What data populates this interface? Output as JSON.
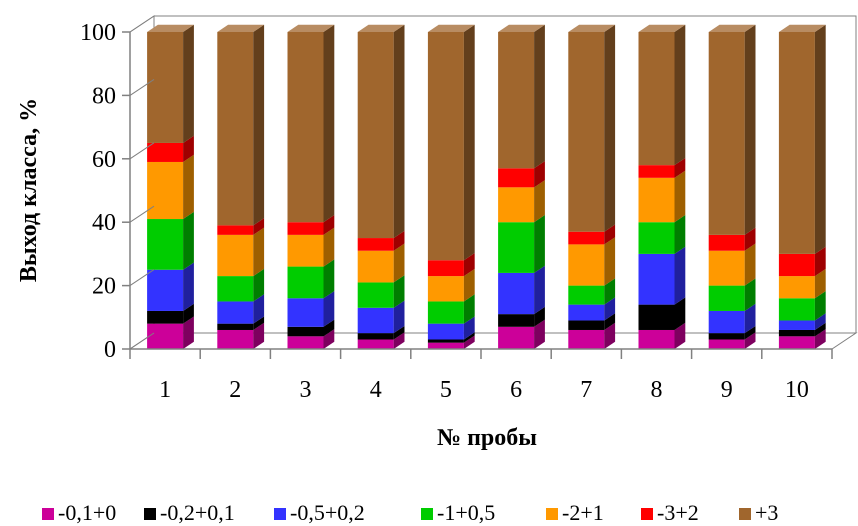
{
  "chart_data": {
    "type": "bar",
    "stacked": true,
    "three_d": true,
    "xlabel": "№ пробы",
    "ylabel": "Выход класса, %",
    "categories": [
      "1",
      "2",
      "3",
      "4",
      "5",
      "6",
      "7",
      "8",
      "9",
      "10"
    ],
    "ylim": [
      0,
      100
    ],
    "yticks": [
      0,
      20,
      40,
      60,
      80,
      100
    ],
    "grid": false,
    "legend_position": "bottom",
    "series": [
      {
        "name": "-0,1+0",
        "color": "#CC0099",
        "values": [
          8,
          6,
          4,
          3,
          2,
          7,
          6,
          6,
          3,
          4
        ]
      },
      {
        "name": "-0,2+0,1",
        "color": "#000000",
        "values": [
          4,
          2,
          3,
          2,
          1,
          4,
          3,
          8,
          2,
          2
        ]
      },
      {
        "name": "-0,5+0,2",
        "color": "#3333FF",
        "values": [
          13,
          7,
          9,
          8,
          5,
          13,
          5,
          16,
          7,
          3
        ]
      },
      {
        "name": "-1+0,5",
        "color": "#00CC00",
        "values": [
          16,
          8,
          10,
          8,
          7,
          16,
          6,
          10,
          8,
          7
        ]
      },
      {
        "name": "-2+1",
        "color": "#FF9900",
        "values": [
          18,
          13,
          10,
          10,
          8,
          11,
          13,
          14,
          11,
          7
        ]
      },
      {
        "name": "-3+2",
        "color": "#FF0000",
        "values": [
          6,
          3,
          4,
          4,
          5,
          6,
          4,
          4,
          5,
          7
        ]
      },
      {
        "name": "+3",
        "color": "#A0662D",
        "values": [
          35,
          61,
          60,
          65,
          72,
          43,
          63,
          42,
          64,
          70
        ]
      }
    ]
  }
}
